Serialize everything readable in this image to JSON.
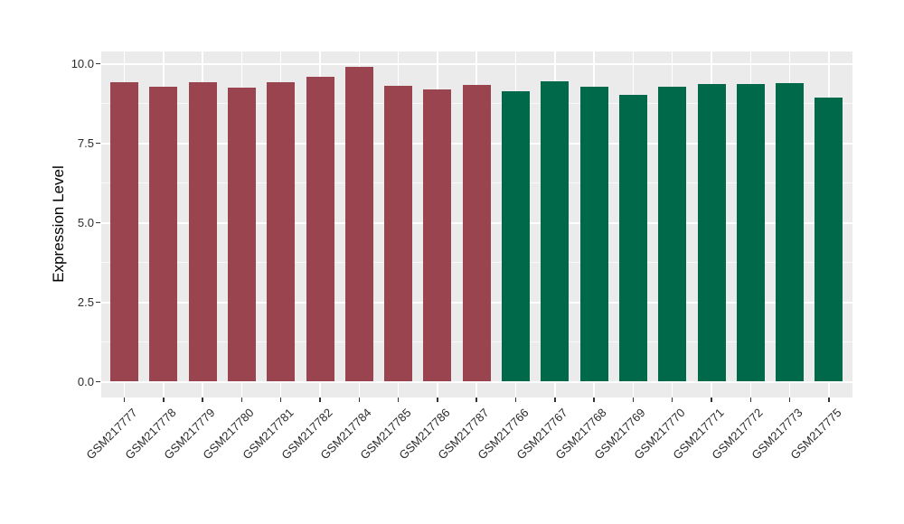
{
  "chart_data": {
    "type": "bar",
    "title": "",
    "xlabel": "",
    "ylabel": "Expression Level",
    "ylim": [
      0,
      10.38
    ],
    "grid": true,
    "legend": "none",
    "yticks": [
      {
        "label": "0.0",
        "value": 0.0
      },
      {
        "label": "2.5",
        "value": 2.5
      },
      {
        "label": "5.0",
        "value": 5.0
      },
      {
        "label": "7.5",
        "value": 7.5
      },
      {
        "label": "10.0",
        "value": 10.0
      }
    ],
    "yticks_minor": [
      1.25,
      3.75,
      6.25,
      8.75
    ],
    "categories": [
      "GSM217777",
      "GSM217778",
      "GSM217779",
      "GSM217780",
      "GSM217781",
      "GSM217782",
      "GSM217784",
      "GSM217785",
      "GSM217786",
      "GSM217787",
      "GSM217766",
      "GSM217767",
      "GSM217768",
      "GSM217769",
      "GSM217770",
      "GSM217771",
      "GSM217772",
      "GSM217773",
      "GSM217775"
    ],
    "values": [
      9.42,
      9.28,
      9.43,
      9.25,
      9.42,
      9.6,
      9.9,
      9.3,
      9.18,
      9.34,
      9.12,
      9.45,
      9.27,
      9.03,
      9.27,
      9.36,
      9.35,
      9.38,
      8.93
    ],
    "groups": [
      {
        "name": "group-1",
        "color": "#9A4450",
        "count": 10
      },
      {
        "name": "group-2",
        "color": "#00694A",
        "count": 9
      }
    ],
    "bar_colors": [
      "#9A4450",
      "#9A4450",
      "#9A4450",
      "#9A4450",
      "#9A4450",
      "#9A4450",
      "#9A4450",
      "#9A4450",
      "#9A4450",
      "#9A4450",
      "#00694A",
      "#00694A",
      "#00694A",
      "#00694A",
      "#00694A",
      "#00694A",
      "#00694A",
      "#00694A",
      "#00694A"
    ]
  },
  "style_colors": {
    "panel_background": "#EBEBEB",
    "grid_major": "#FFFFFF",
    "grid_minor": "#F5F5F5",
    "axis_text": "#2B2B2B",
    "axis_title": "#000000",
    "tick_mark": "#333333"
  }
}
